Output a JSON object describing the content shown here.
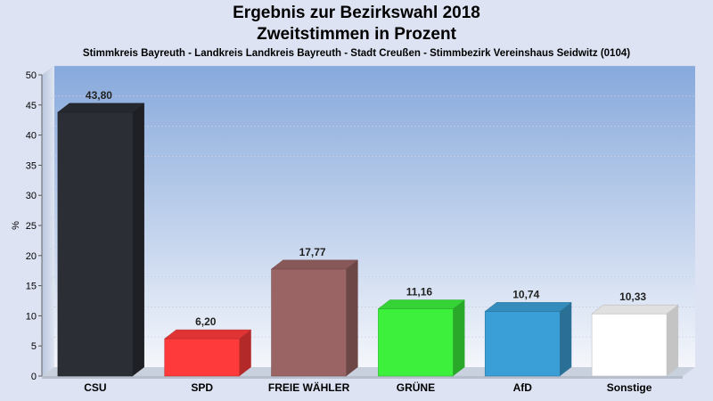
{
  "title": "Ergebnis zur Bezirkswahl 2018",
  "title2": "Zweitstimmen in Prozent",
  "subtitle": "Stimmkreis Bayreuth - Landkreis Landkreis Bayreuth - Stadt Creußen - Stimmbezirk Vereinshaus Seidwitz (0104)",
  "chart_data": {
    "type": "bar",
    "title": "Ergebnis zur Bezirkswahl 2018",
    "subtitle": "Zweitstimmen in Prozent",
    "ylabel": "%",
    "xlabel": "",
    "ylim": [
      0,
      50
    ],
    "yticks": [
      0,
      5,
      10,
      15,
      20,
      25,
      30,
      35,
      40,
      45,
      50
    ],
    "grid": true,
    "categories": [
      "CSU",
      "SPD",
      "FREIE WÄHLER",
      "GRÜNE",
      "AfD",
      "Sonstige"
    ],
    "values": [
      43.8,
      6.2,
      17.77,
      11.16,
      10.74,
      10.33
    ],
    "value_labels": [
      "43,80",
      "6,20",
      "17,77",
      "11,16",
      "10,74",
      "10,33"
    ],
    "colors": [
      "#2b2e35",
      "#ff3a3a",
      "#9b6464",
      "#3cf03c",
      "#3a9fd6",
      "#ffffff"
    ]
  }
}
